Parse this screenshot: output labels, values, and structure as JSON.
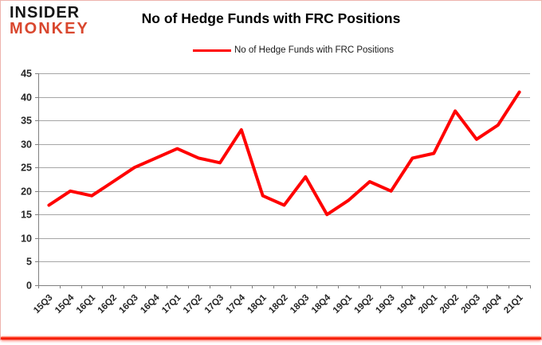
{
  "header": {
    "logo_line1": "INSIDER",
    "logo_line2": "MONKEY",
    "title": "No of Hedge Funds with FRC Positions",
    "legend_label": "No of Hedge Funds with FRC Positions"
  },
  "colors": {
    "series_line": "#ff0000",
    "logo_red": "#d9472e",
    "grid": "#a6a6a6",
    "axis": "#808080",
    "tick_text": "#262626",
    "border_pink": "#eeb3ad"
  },
  "chart_data": {
    "type": "line",
    "title": "No of Hedge Funds with FRC Positions",
    "categories": [
      "15Q3",
      "15Q4",
      "16Q1",
      "16Q2",
      "16Q3",
      "16Q4",
      "17Q1",
      "17Q2",
      "17Q3",
      "17Q4",
      "18Q1",
      "18Q2",
      "18Q3",
      "18Q4",
      "19Q1",
      "19Q2",
      "19Q3",
      "19Q4",
      "20Q1",
      "20Q2",
      "20Q3",
      "20Q4",
      "21Q1"
    ],
    "series": [
      {
        "name": "No of Hedge Funds with FRC Positions",
        "values": [
          17,
          20,
          19,
          22,
          25,
          27,
          29,
          27,
          26,
          33,
          19,
          17,
          23,
          15,
          18,
          22,
          20,
          27,
          28,
          37,
          31,
          34,
          41
        ]
      }
    ],
    "xlabel": "",
    "ylabel": "",
    "ylim": [
      0,
      45
    ],
    "ytick_step": 5,
    "yticks": [
      0,
      5,
      10,
      15,
      20,
      25,
      30,
      35,
      40,
      45
    ],
    "grid": true,
    "legend_position": "top-center"
  }
}
